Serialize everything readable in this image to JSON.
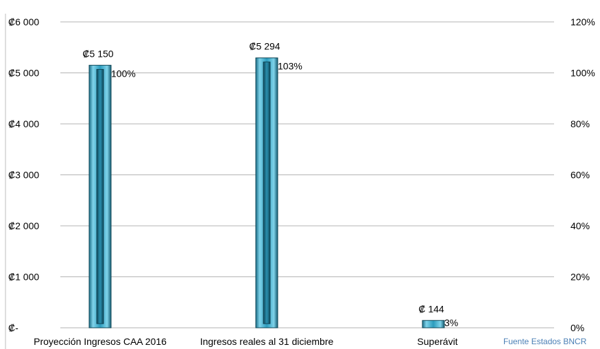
{
  "chart_data": {
    "type": "bar",
    "categories": [
      "Proyección Ingresos CAA 2016",
      "Ingresos reales al 31 diciembre",
      "Superávit"
    ],
    "values": [
      5150,
      5294,
      144
    ],
    "value_labels": [
      "₡5 150",
      "₡5 294",
      "₡ 144"
    ],
    "percent_values": [
      100,
      103,
      3
    ],
    "percent_labels": [
      "100%",
      "103%",
      "3%"
    ],
    "ylim": [
      0,
      6000
    ],
    "y_ticks": [
      {
        "value": 0,
        "label": "₡-"
      },
      {
        "value": 1000,
        "label": "₡1 000"
      },
      {
        "value": 2000,
        "label": "₡2 000"
      },
      {
        "value": 3000,
        "label": "₡3 000"
      },
      {
        "value": 4000,
        "label": "₡4 000"
      },
      {
        "value": 5000,
        "label": "₡5 000"
      },
      {
        "value": 6000,
        "label": "₡6 000"
      }
    ],
    "y2lim": [
      0,
      120
    ],
    "y2_ticks": [
      {
        "value": 0,
        "label": "0%"
      },
      {
        "value": 20,
        "label": "20%"
      },
      {
        "value": 40,
        "label": "40%"
      },
      {
        "value": 60,
        "label": "60%"
      },
      {
        "value": 80,
        "label": "80%"
      },
      {
        "value": 100,
        "label": "100%"
      },
      {
        "value": 120,
        "label": "120%"
      }
    ],
    "grid": true,
    "bar_color": "#3aa8c8",
    "source_note": "Fuente Estados BNCR",
    "source_note_color": "#4a7fb5"
  }
}
